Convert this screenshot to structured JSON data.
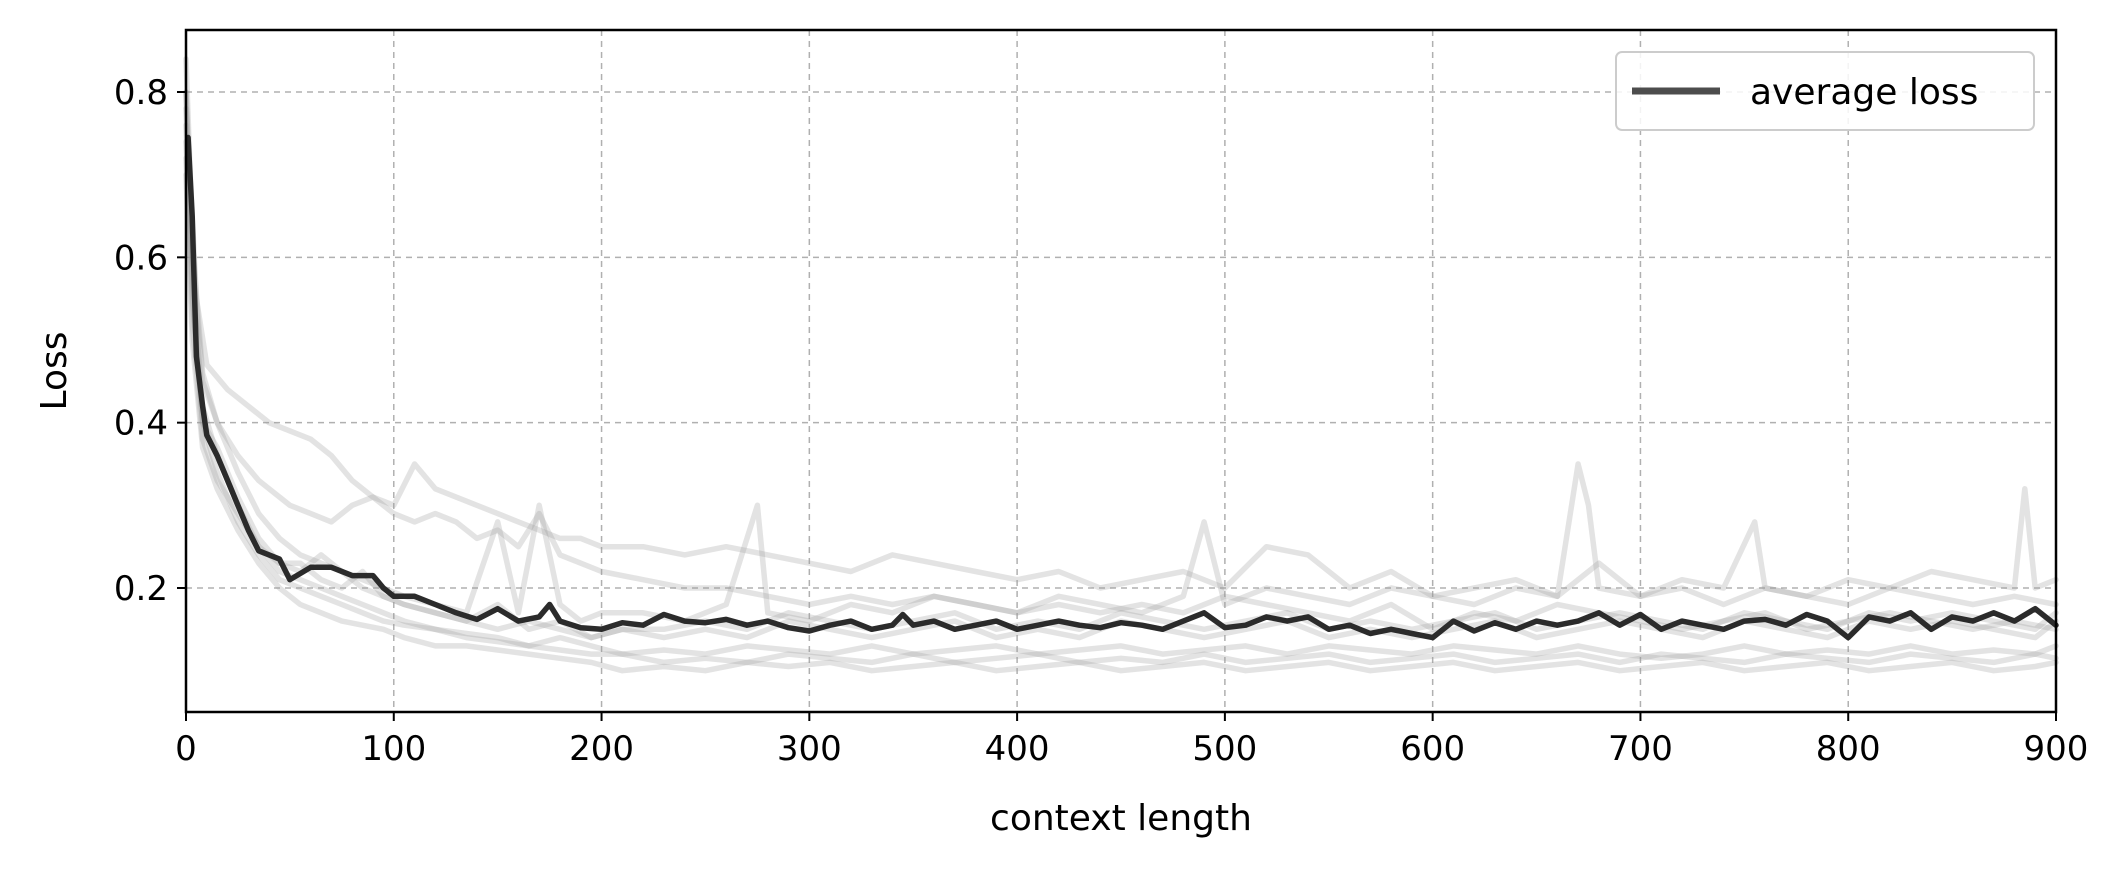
{
  "chart_data": {
    "type": "line",
    "title": "",
    "xlabel": "context length",
    "ylabel": "Loss",
    "xlim": [
      0,
      900
    ],
    "ylim": [
      0.05,
      0.875
    ],
    "xticks": [
      0,
      100,
      200,
      300,
      400,
      500,
      600,
      700,
      800,
      900
    ],
    "yticks": [
      0.2,
      0.4,
      0.6,
      0.8
    ],
    "xtick_labels": [
      "0",
      "100",
      "200",
      "300",
      "400",
      "500",
      "600",
      "700",
      "800",
      "900"
    ],
    "ytick_labels": [
      "0.2",
      "0.4",
      "0.6",
      "0.8"
    ],
    "grid": true,
    "legend": {
      "placement": "top-right",
      "entries": [
        "average loss"
      ]
    },
    "colors": {
      "average": "#2b2b2b",
      "runs": "#9a9a9a",
      "legend_line": "#4d4d4d",
      "grid": "#b0b0b0"
    },
    "series": [
      {
        "name": "average loss",
        "role": "average",
        "x": [
          1,
          3,
          5,
          8,
          10,
          15,
          20,
          25,
          30,
          35,
          40,
          45,
          50,
          60,
          70,
          80,
          90,
          95,
          100,
          110,
          120,
          130,
          140,
          150,
          160,
          170,
          175,
          180,
          190,
          200,
          210,
          220,
          230,
          240,
          250,
          260,
          270,
          280,
          290,
          300,
          310,
          320,
          330,
          340,
          345,
          350,
          360,
          370,
          380,
          390,
          400,
          410,
          420,
          430,
          440,
          450,
          460,
          470,
          480,
          490,
          500,
          510,
          520,
          530,
          540,
          550,
          560,
          570,
          580,
          590,
          600,
          610,
          620,
          630,
          640,
          650,
          660,
          670,
          680,
          690,
          700,
          710,
          720,
          730,
          740,
          750,
          760,
          770,
          780,
          790,
          800,
          810,
          820,
          830,
          840,
          850,
          860,
          870,
          880,
          890,
          900
        ],
        "y": [
          0.745,
          0.65,
          0.48,
          0.42,
          0.385,
          0.36,
          0.33,
          0.3,
          0.27,
          0.245,
          0.24,
          0.235,
          0.21,
          0.225,
          0.225,
          0.215,
          0.215,
          0.2,
          0.19,
          0.19,
          0.18,
          0.17,
          0.162,
          0.175,
          0.16,
          0.165,
          0.18,
          0.16,
          0.152,
          0.15,
          0.158,
          0.155,
          0.168,
          0.16,
          0.158,
          0.162,
          0.155,
          0.16,
          0.152,
          0.148,
          0.155,
          0.16,
          0.15,
          0.155,
          0.168,
          0.155,
          0.16,
          0.15,
          0.155,
          0.16,
          0.15,
          0.155,
          0.16,
          0.155,
          0.152,
          0.158,
          0.155,
          0.15,
          0.16,
          0.17,
          0.152,
          0.155,
          0.165,
          0.16,
          0.165,
          0.15,
          0.155,
          0.145,
          0.15,
          0.145,
          0.14,
          0.16,
          0.148,
          0.158,
          0.15,
          0.16,
          0.155,
          0.16,
          0.17,
          0.155,
          0.168,
          0.15,
          0.16,
          0.155,
          0.15,
          0.16,
          0.162,
          0.155,
          0.168,
          0.16,
          0.14,
          0.165,
          0.16,
          0.17,
          0.15,
          0.165,
          0.16,
          0.17,
          0.16,
          0.175,
          0.155
        ]
      },
      {
        "role": "run",
        "x": [
          0,
          2,
          5,
          10,
          20,
          30,
          40,
          50,
          60,
          70,
          80,
          90,
          100,
          110,
          120,
          130,
          140,
          150,
          160,
          170,
          180,
          190,
          200,
          220,
          240,
          260,
          280,
          300,
          320,
          340,
          360,
          380,
          400,
          420,
          440,
          460,
          480,
          500,
          520,
          540,
          560,
          580,
          600,
          620,
          640,
          660,
          680,
          700,
          720,
          740,
          760,
          780,
          800,
          820,
          840,
          860,
          880,
          900
        ],
        "y": [
          0.84,
          0.7,
          0.55,
          0.47,
          0.44,
          0.42,
          0.4,
          0.39,
          0.38,
          0.36,
          0.33,
          0.31,
          0.3,
          0.35,
          0.32,
          0.31,
          0.3,
          0.29,
          0.28,
          0.27,
          0.26,
          0.26,
          0.25,
          0.25,
          0.24,
          0.25,
          0.24,
          0.23,
          0.22,
          0.24,
          0.23,
          0.22,
          0.21,
          0.22,
          0.2,
          0.21,
          0.22,
          0.2,
          0.25,
          0.24,
          0.2,
          0.22,
          0.19,
          0.2,
          0.21,
          0.19,
          0.23,
          0.19,
          0.2,
          0.18,
          0.2,
          0.19,
          0.18,
          0.2,
          0.19,
          0.18,
          0.19,
          0.18
        ]
      },
      {
        "role": "run",
        "x": [
          0,
          3,
          8,
          15,
          25,
          35,
          50,
          60,
          70,
          80,
          90,
          100,
          110,
          120,
          130,
          140,
          150,
          160,
          170,
          180,
          190,
          200,
          220,
          240,
          260,
          280,
          300,
          320,
          340,
          360,
          380,
          400,
          420,
          440,
          460,
          480,
          500,
          520,
          540,
          560,
          580,
          600,
          620,
          640,
          660,
          680,
          700,
          720,
          740,
          760,
          780,
          800,
          820,
          840,
          860,
          880,
          900
        ],
        "y": [
          0.8,
          0.6,
          0.45,
          0.4,
          0.36,
          0.33,
          0.3,
          0.29,
          0.28,
          0.3,
          0.31,
          0.29,
          0.28,
          0.29,
          0.28,
          0.26,
          0.27,
          0.25,
          0.29,
          0.24,
          0.23,
          0.22,
          0.21,
          0.2,
          0.2,
          0.19,
          0.18,
          0.19,
          0.18,
          0.19,
          0.18,
          0.17,
          0.18,
          0.17,
          0.18,
          0.17,
          0.19,
          0.18,
          0.17,
          0.16,
          0.18,
          0.15,
          0.17,
          0.16,
          0.18,
          0.17,
          0.16,
          0.15,
          0.16,
          0.17,
          0.15,
          0.16,
          0.17,
          0.16,
          0.15,
          0.16,
          0.15
        ]
      },
      {
        "role": "run",
        "x": [
          0,
          3,
          8,
          15,
          25,
          35,
          45,
          55,
          65,
          75,
          85,
          95,
          105,
          120,
          135,
          150,
          165,
          180,
          195,
          210,
          230,
          250,
          270,
          290,
          310,
          330,
          350,
          370,
          390,
          410,
          430,
          450,
          470,
          490,
          510,
          530,
          550,
          570,
          590,
          610,
          630,
          650,
          670,
          690,
          710,
          730,
          750,
          770,
          790,
          810,
          830,
          850,
          870,
          890,
          900
        ],
        "y": [
          0.76,
          0.55,
          0.4,
          0.34,
          0.28,
          0.24,
          0.21,
          0.2,
          0.19,
          0.18,
          0.17,
          0.16,
          0.155,
          0.15,
          0.14,
          0.135,
          0.13,
          0.125,
          0.12,
          0.12,
          0.125,
          0.12,
          0.13,
          0.125,
          0.12,
          0.13,
          0.12,
          0.125,
          0.13,
          0.12,
          0.125,
          0.13,
          0.12,
          0.125,
          0.13,
          0.12,
          0.13,
          0.125,
          0.12,
          0.13,
          0.125,
          0.12,
          0.13,
          0.12,
          0.115,
          0.12,
          0.13,
          0.12,
          0.125,
          0.12,
          0.13,
          0.12,
          0.125,
          0.12,
          0.13
        ]
      },
      {
        "role": "run",
        "x": [
          0,
          3,
          8,
          15,
          25,
          35,
          45,
          55,
          65,
          75,
          85,
          95,
          105,
          120,
          135,
          150,
          165,
          180,
          195,
          210,
          230,
          250,
          270,
          290,
          310,
          330,
          350,
          370,
          390,
          410,
          430,
          450,
          470,
          490,
          510,
          530,
          550,
          570,
          590,
          610,
          630,
          650,
          670,
          690,
          710,
          730,
          750,
          770,
          790,
          810,
          830,
          850,
          870,
          890,
          900
        ],
        "y": [
          0.78,
          0.58,
          0.42,
          0.36,
          0.3,
          0.25,
          0.22,
          0.21,
          0.2,
          0.19,
          0.18,
          0.17,
          0.16,
          0.15,
          0.145,
          0.14,
          0.13,
          0.14,
          0.13,
          0.12,
          0.11,
          0.115,
          0.11,
          0.12,
          0.115,
          0.11,
          0.12,
          0.11,
          0.115,
          0.12,
          0.11,
          0.115,
          0.11,
          0.12,
          0.11,
          0.115,
          0.12,
          0.11,
          0.115,
          0.12,
          0.11,
          0.115,
          0.12,
          0.11,
          0.12,
          0.115,
          0.11,
          0.12,
          0.115,
          0.11,
          0.12,
          0.115,
          0.11,
          0.12,
          0.115
        ]
      },
      {
        "role": "run",
        "x": [
          0,
          3,
          8,
          15,
          25,
          35,
          45,
          55,
          65,
          75,
          85,
          95,
          105,
          120,
          135,
          150,
          165,
          180,
          195,
          210,
          230,
          250,
          270,
          290,
          310,
          330,
          350,
          370,
          390,
          410,
          430,
          450,
          470,
          490,
          510,
          530,
          550,
          570,
          590,
          610,
          630,
          650,
          670,
          690,
          710,
          730,
          750,
          770,
          790,
          810,
          830,
          850,
          870,
          890,
          900
        ],
        "y": [
          0.72,
          0.52,
          0.38,
          0.33,
          0.29,
          0.25,
          0.23,
          0.22,
          0.24,
          0.22,
          0.2,
          0.19,
          0.18,
          0.17,
          0.16,
          0.18,
          0.15,
          0.16,
          0.14,
          0.15,
          0.14,
          0.15,
          0.14,
          0.16,
          0.15,
          0.14,
          0.15,
          0.16,
          0.14,
          0.15,
          0.14,
          0.16,
          0.15,
          0.14,
          0.15,
          0.16,
          0.14,
          0.15,
          0.14,
          0.15,
          0.16,
          0.14,
          0.15,
          0.16,
          0.15,
          0.14,
          0.16,
          0.15,
          0.14,
          0.16,
          0.15,
          0.16,
          0.15,
          0.14,
          0.16
        ]
      },
      {
        "role": "run",
        "x": [
          0,
          3,
          8,
          15,
          25,
          35,
          45,
          55,
          65,
          75,
          85,
          95,
          105,
          120,
          135,
          150,
          165,
          180,
          195,
          210,
          230,
          250,
          270,
          290,
          310,
          330,
          350,
          370,
          390,
          410,
          430,
          450,
          470,
          490,
          510,
          530,
          550,
          570,
          590,
          610,
          630,
          650,
          670,
          690,
          710,
          730,
          750,
          770,
          790,
          810,
          830,
          850,
          870,
          890,
          900
        ],
        "y": [
          0.74,
          0.56,
          0.4,
          0.37,
          0.31,
          0.26,
          0.23,
          0.23,
          0.21,
          0.2,
          0.22,
          0.19,
          0.18,
          0.17,
          0.16,
          0.15,
          0.16,
          0.15,
          0.14,
          0.15,
          0.15,
          0.16,
          0.15,
          0.17,
          0.16,
          0.15,
          0.16,
          0.17,
          0.15,
          0.16,
          0.15,
          0.17,
          0.16,
          0.15,
          0.16,
          0.17,
          0.15,
          0.16,
          0.15,
          0.16,
          0.17,
          0.15,
          0.16,
          0.17,
          0.16,
          0.15,
          0.17,
          0.16,
          0.15,
          0.17,
          0.16,
          0.17,
          0.16,
          0.15,
          0.17
        ]
      },
      {
        "role": "run",
        "x": [
          0,
          3,
          8,
          15,
          25,
          35,
          45,
          55,
          65,
          75,
          85,
          95,
          105,
          120,
          135,
          150,
          165,
          180,
          195,
          210,
          230,
          250,
          270,
          290,
          310,
          330,
          350,
          370,
          390,
          410,
          430,
          450,
          470,
          490,
          510,
          530,
          550,
          570,
          590,
          610,
          630,
          650,
          670,
          690,
          710,
          730,
          750,
          770,
          790,
          810,
          830,
          850,
          870,
          890,
          900
        ],
        "y": [
          0.7,
          0.5,
          0.37,
          0.32,
          0.27,
          0.23,
          0.2,
          0.18,
          0.17,
          0.16,
          0.155,
          0.15,
          0.14,
          0.13,
          0.13,
          0.125,
          0.12,
          0.115,
          0.11,
          0.1,
          0.105,
          0.1,
          0.11,
          0.105,
          0.11,
          0.1,
          0.105,
          0.11,
          0.1,
          0.105,
          0.11,
          0.1,
          0.105,
          0.11,
          0.1,
          0.105,
          0.11,
          0.1,
          0.105,
          0.11,
          0.1,
          0.105,
          0.11,
          0.1,
          0.105,
          0.11,
          0.1,
          0.105,
          0.11,
          0.1,
          0.105,
          0.11,
          0.1,
          0.105,
          0.11
        ]
      },
      {
        "role": "run",
        "x": [
          0,
          3,
          8,
          15,
          25,
          35,
          45,
          55,
          65,
          75,
          85,
          95,
          105,
          120,
          135,
          150,
          160,
          170,
          180,
          190,
          200,
          220,
          240,
          260,
          275,
          280,
          300,
          320,
          340,
          360,
          380,
          400,
          420,
          440,
          460,
          480,
          490,
          500,
          520,
          540,
          560,
          580,
          600,
          620,
          640,
          660,
          670,
          675,
          680,
          700,
          720,
          740,
          755,
          760,
          780,
          800,
          820,
          840,
          860,
          880,
          885,
          890,
          900
        ],
        "y": [
          0.8,
          0.62,
          0.46,
          0.4,
          0.34,
          0.29,
          0.26,
          0.24,
          0.23,
          0.22,
          0.21,
          0.2,
          0.19,
          0.18,
          0.17,
          0.28,
          0.17,
          0.3,
          0.18,
          0.16,
          0.17,
          0.17,
          0.16,
          0.18,
          0.3,
          0.17,
          0.16,
          0.18,
          0.17,
          0.19,
          0.18,
          0.17,
          0.19,
          0.18,
          0.17,
          0.19,
          0.28,
          0.18,
          0.2,
          0.19,
          0.18,
          0.2,
          0.19,
          0.18,
          0.2,
          0.19,
          0.35,
          0.3,
          0.2,
          0.19,
          0.21,
          0.2,
          0.28,
          0.2,
          0.19,
          0.21,
          0.2,
          0.22,
          0.21,
          0.2,
          0.32,
          0.2,
          0.21
        ]
      }
    ]
  }
}
